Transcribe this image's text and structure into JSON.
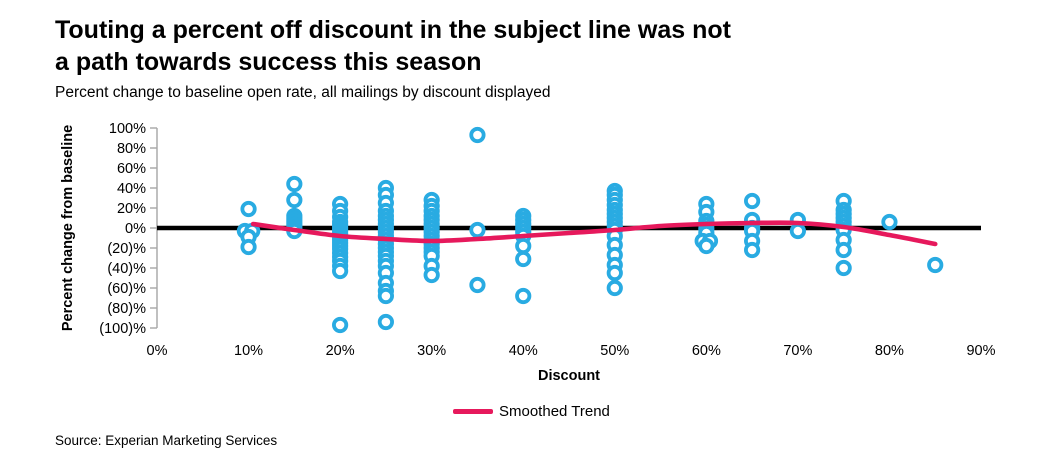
{
  "header": {
    "title_line1": "Touting a percent off discount in the subject line was not",
    "title_line2": "a path towards success this season",
    "subtitle": "Percent change to baseline open rate, all mailings by discount displayed"
  },
  "legend": {
    "label": "Smoothed Trend"
  },
  "footer": {
    "source": "Source: Experian Marketing Services"
  },
  "colors": {
    "point": "#29ABE2",
    "trend": "#E6195C",
    "zero_line": "#000000",
    "axis": "#A6A6A6"
  },
  "chart_data": {
    "type": "scatter",
    "title": "",
    "xlabel": "Discount",
    "ylabel": "Percent change from baseline",
    "xlim": [
      0,
      90
    ],
    "ylim": [
      -100,
      100
    ],
    "grid": false,
    "zero_line": true,
    "legend_position": "bottom",
    "x_ticks": [
      {
        "v": 0,
        "label": "0%"
      },
      {
        "v": 10,
        "label": "10%"
      },
      {
        "v": 20,
        "label": "20%"
      },
      {
        "v": 30,
        "label": "30%"
      },
      {
        "v": 40,
        "label": "40%"
      },
      {
        "v": 50,
        "label": "50%"
      },
      {
        "v": 60,
        "label": "60%"
      },
      {
        "v": 70,
        "label": "70%"
      },
      {
        "v": 80,
        "label": "80%"
      },
      {
        "v": 90,
        "label": "90%"
      }
    ],
    "y_ticks": [
      {
        "v": 100,
        "label": "100%"
      },
      {
        "v": 80,
        "label": "80%"
      },
      {
        "v": 60,
        "label": "60%"
      },
      {
        "v": 40,
        "label": "40%"
      },
      {
        "v": 20,
        "label": "20%"
      },
      {
        "v": 0,
        "label": "0%"
      },
      {
        "v": -20,
        "label": "(20)%"
      },
      {
        "v": -40,
        "label": "(40)%"
      },
      {
        "v": -60,
        "label": "(60)%"
      },
      {
        "v": -80,
        "label": "(80)%"
      },
      {
        "v": -100,
        "label": "(100)%"
      }
    ],
    "series": [
      {
        "name": "All mailings",
        "type": "scatter",
        "points": [
          [
            10,
            19
          ],
          [
            9.6,
            -3
          ],
          [
            10.4,
            -3
          ],
          [
            10,
            -9
          ],
          [
            10,
            -19
          ],
          [
            15,
            44
          ],
          [
            15,
            28
          ],
          [
            15,
            12
          ],
          [
            15,
            9
          ],
          [
            15,
            6
          ],
          [
            15,
            3
          ],
          [
            15,
            0
          ],
          [
            15,
            -3
          ],
          [
            20,
            24
          ],
          [
            20,
            17
          ],
          [
            20,
            11
          ],
          [
            20,
            6
          ],
          [
            20,
            3
          ],
          [
            20,
            0
          ],
          [
            20,
            -3
          ],
          [
            20,
            -6
          ],
          [
            20,
            -9
          ],
          [
            20,
            -12
          ],
          [
            20,
            -15
          ],
          [
            20,
            -18
          ],
          [
            20,
            -21
          ],
          [
            20,
            -25
          ],
          [
            20,
            -29
          ],
          [
            20,
            -33
          ],
          [
            20,
            -38
          ],
          [
            20,
            -43
          ],
          [
            20,
            -97
          ],
          [
            25,
            40
          ],
          [
            25,
            33
          ],
          [
            25,
            25
          ],
          [
            25,
            17
          ],
          [
            25,
            12
          ],
          [
            25,
            8
          ],
          [
            25,
            4
          ],
          [
            25,
            0
          ],
          [
            25,
            -4
          ],
          [
            25,
            -8
          ],
          [
            25,
            -12
          ],
          [
            25,
            -16
          ],
          [
            25,
            -20
          ],
          [
            25,
            -24
          ],
          [
            25,
            -28
          ],
          [
            25,
            -33
          ],
          [
            25,
            -38
          ],
          [
            25,
            -45
          ],
          [
            25,
            -55
          ],
          [
            25,
            -63
          ],
          [
            25,
            -68
          ],
          [
            25,
            -94
          ],
          [
            30,
            28
          ],
          [
            30,
            22
          ],
          [
            30,
            17
          ],
          [
            30,
            12
          ],
          [
            30,
            8
          ],
          [
            30,
            4
          ],
          [
            30,
            0
          ],
          [
            30,
            -4
          ],
          [
            30,
            -8
          ],
          [
            30,
            -12
          ],
          [
            30,
            -16
          ],
          [
            30,
            -20
          ],
          [
            30,
            -24
          ],
          [
            30,
            -28
          ],
          [
            30,
            -38
          ],
          [
            30,
            -47
          ],
          [
            35,
            93
          ],
          [
            35,
            -2
          ],
          [
            35,
            -57
          ],
          [
            40,
            12
          ],
          [
            40,
            8
          ],
          [
            40,
            4
          ],
          [
            40,
            0
          ],
          [
            40,
            -4
          ],
          [
            40,
            -8
          ],
          [
            40,
            -18
          ],
          [
            40,
            -31
          ],
          [
            40,
            -68
          ],
          [
            50,
            37
          ],
          [
            50,
            33
          ],
          [
            50,
            28
          ],
          [
            50,
            23
          ],
          [
            50,
            18
          ],
          [
            50,
            14
          ],
          [
            50,
            10
          ],
          [
            50,
            6
          ],
          [
            50,
            2
          ],
          [
            50,
            -2
          ],
          [
            50,
            -8
          ],
          [
            50,
            -17
          ],
          [
            50,
            -27
          ],
          [
            50,
            -37
          ],
          [
            50,
            -45
          ],
          [
            50,
            -60
          ],
          [
            60,
            24
          ],
          [
            60,
            16
          ],
          [
            60,
            7
          ],
          [
            60,
            3
          ],
          [
            60,
            -1
          ],
          [
            60,
            -5
          ],
          [
            59.6,
            -13
          ],
          [
            60.4,
            -13
          ],
          [
            60,
            -18
          ],
          [
            65,
            27
          ],
          [
            65,
            8
          ],
          [
            65,
            0
          ],
          [
            65,
            -3
          ],
          [
            65,
            -13
          ],
          [
            65,
            -22
          ],
          [
            70,
            8
          ],
          [
            70,
            -3
          ],
          [
            75,
            27
          ],
          [
            75,
            18
          ],
          [
            75,
            14
          ],
          [
            75,
            10
          ],
          [
            75,
            6
          ],
          [
            75,
            2
          ],
          [
            75,
            -2
          ],
          [
            75,
            -12
          ],
          [
            75,
            -22
          ],
          [
            75,
            -40
          ],
          [
            80,
            6
          ],
          [
            85,
            -37
          ]
        ]
      },
      {
        "name": "Smoothed Trend",
        "type": "line",
        "points": [
          [
            10.5,
            4
          ],
          [
            15,
            -2
          ],
          [
            20,
            -8
          ],
          [
            25,
            -11
          ],
          [
            30,
            -13
          ],
          [
            35,
            -11
          ],
          [
            40,
            -8
          ],
          [
            45,
            -5
          ],
          [
            50,
            -2
          ],
          [
            55,
            2
          ],
          [
            60,
            4
          ],
          [
            65,
            5
          ],
          [
            70,
            5
          ],
          [
            75,
            1
          ],
          [
            80,
            -7
          ],
          [
            85,
            -16
          ]
        ]
      }
    ]
  }
}
